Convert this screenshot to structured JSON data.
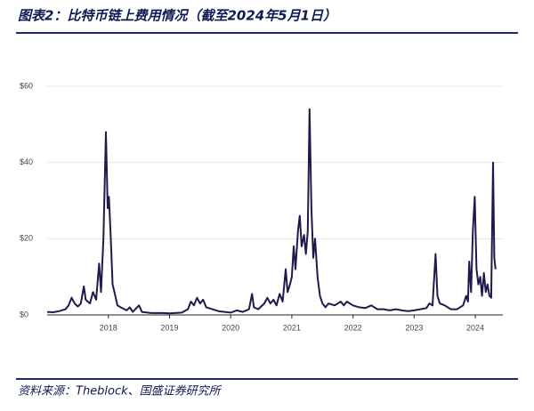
{
  "chart_data": {
    "type": "line",
    "title": "图表2：比特币链上费用情况（截至2024年5月1日）",
    "source": "资料来源：Theblock、国盛证券研究所",
    "x": [
      2017.0,
      2017.1,
      2017.2,
      2017.3,
      2017.35,
      2017.4,
      2017.45,
      2017.5,
      2017.55,
      2017.6,
      2017.63,
      2017.7,
      2017.75,
      2017.8,
      2017.85,
      2017.88,
      2017.92,
      2017.96,
      2017.99,
      2018.01,
      2018.04,
      2018.07,
      2018.1,
      2018.15,
      2018.2,
      2018.3,
      2018.35,
      2018.4,
      2018.5,
      2018.55,
      2018.7,
      2018.9,
      2019.0,
      2019.2,
      2019.3,
      2019.35,
      2019.4,
      2019.45,
      2019.5,
      2019.55,
      2019.6,
      2019.7,
      2019.8,
      2019.9,
      2020.0,
      2020.1,
      2020.2,
      2020.3,
      2020.35,
      2020.38,
      2020.45,
      2020.55,
      2020.6,
      2020.65,
      2020.7,
      2020.75,
      2020.8,
      2020.85,
      2020.9,
      2020.93,
      2020.97,
      2021.0,
      2021.03,
      2021.06,
      2021.1,
      2021.13,
      2021.16,
      2021.2,
      2021.23,
      2021.26,
      2021.29,
      2021.32,
      2021.35,
      2021.38,
      2021.42,
      2021.46,
      2021.5,
      2021.55,
      2021.6,
      2021.7,
      2021.8,
      2021.85,
      2021.9,
      2022.0,
      2022.1,
      2022.2,
      2022.3,
      2022.4,
      2022.5,
      2022.6,
      2022.7,
      2022.8,
      2022.9,
      2023.0,
      2023.1,
      2023.2,
      2023.25,
      2023.3,
      2023.35,
      2023.38,
      2023.42,
      2023.5,
      2023.6,
      2023.7,
      2023.8,
      2023.85,
      2023.88,
      2023.9,
      2023.93,
      2023.96,
      2023.99,
      2024.02,
      2024.05,
      2024.08,
      2024.11,
      2024.14,
      2024.17,
      2024.2,
      2024.23,
      2024.26,
      2024.29,
      2024.31,
      2024.33
    ],
    "series": [
      {
        "color": "#1f1a4e",
        "values": [
          0.8,
          0.7,
          1.0,
          1.5,
          2.5,
          4.5,
          3.0,
          2.2,
          3.0,
          7.5,
          4.0,
          3.0,
          6.0,
          4.0,
          13.5,
          6.0,
          20,
          48,
          28,
          31,
          20,
          8,
          6,
          2.5,
          2.0,
          1.2,
          2.0,
          0.8,
          2.5,
          0.8,
          0.5,
          0.5,
          0.4,
          0.6,
          1.5,
          3.5,
          2.5,
          4.5,
          3.0,
          4.0,
          2.0,
          1.5,
          1.0,
          0.8,
          0.6,
          1.2,
          0.8,
          1.5,
          5.5,
          2.0,
          1.5,
          3.0,
          4.5,
          3.0,
          4.0,
          2.5,
          5.5,
          3.5,
          12,
          6,
          8,
          10,
          18,
          12,
          22,
          26,
          18,
          21,
          16,
          22,
          54,
          28,
          15,
          20,
          10,
          5,
          3,
          2,
          3,
          2.5,
          3.5,
          2.5,
          3.5,
          2.5,
          2.0,
          1.8,
          2.5,
          1.5,
          1.5,
          1.2,
          1.5,
          1.2,
          1.0,
          1.2,
          1.5,
          1.8,
          3.0,
          2.5,
          16,
          5,
          3,
          2.5,
          1.5,
          1.5,
          2.5,
          5,
          3.5,
          14,
          6,
          22,
          31,
          12,
          8,
          10,
          5,
          11,
          6,
          8,
          5,
          4.5,
          40,
          15,
          12
        ]
      }
    ],
    "xlim": [
      2017.0,
      2024.45
    ],
    "xticks": [
      2018,
      2019,
      2020,
      2021,
      2022,
      2023,
      2024
    ],
    "ylim": [
      0,
      60
    ],
    "yticks": [
      {
        "value": 0,
        "label": "$0"
      },
      {
        "value": 20,
        "label": "$20"
      },
      {
        "value": 40,
        "label": "$40"
      },
      {
        "value": 60,
        "label": "$60"
      }
    ],
    "grid": true
  }
}
